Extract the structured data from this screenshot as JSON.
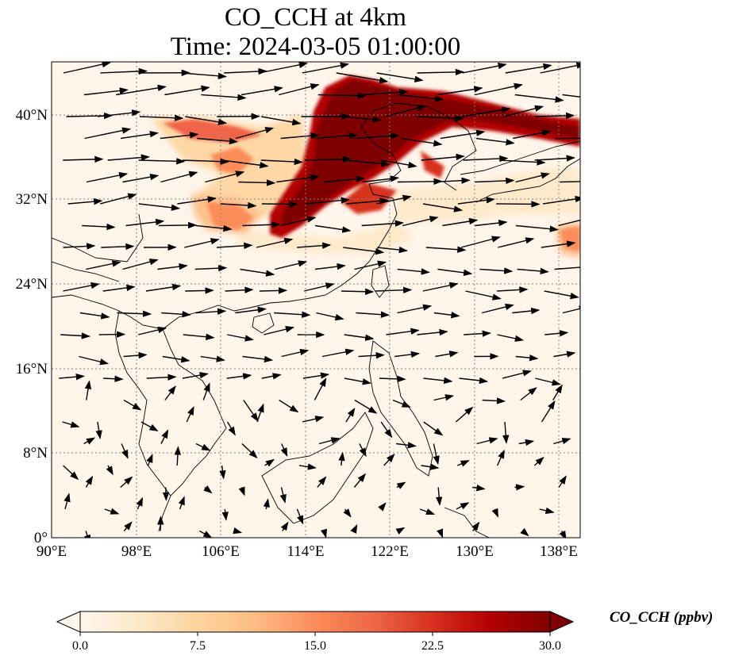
{
  "title": {
    "line1": "CO_CCH at 4km",
    "line2": "Time: 2024-03-05 01:00:00"
  },
  "map": {
    "lon_range": [
      90,
      140
    ],
    "lat_range": [
      0,
      45
    ],
    "lon_ticks": [
      "90°E",
      "98°E",
      "106°E",
      "114°E",
      "122°E",
      "130°E",
      "138°E"
    ],
    "lat_ticks": [
      "0°",
      "8°N",
      "16°N",
      "24°N",
      "32°N",
      "40°N"
    ],
    "gridlines": true,
    "variable": "CO_CCH",
    "vectors": "wind vectors (black arrows)"
  },
  "colorbar": {
    "label": "CO_CCH (ppbv)",
    "ticks": [
      "0.0",
      "7.5",
      "15.0",
      "22.5",
      "30.0"
    ],
    "min": 0,
    "max": 30,
    "colormap": [
      "#fff7ec",
      "#fee8c8",
      "#fdd49e",
      "#fdbb84",
      "#fc8d59",
      "#ef6548",
      "#d7301f",
      "#b30000",
      "#7f0000"
    ],
    "extend": "both"
  }
}
